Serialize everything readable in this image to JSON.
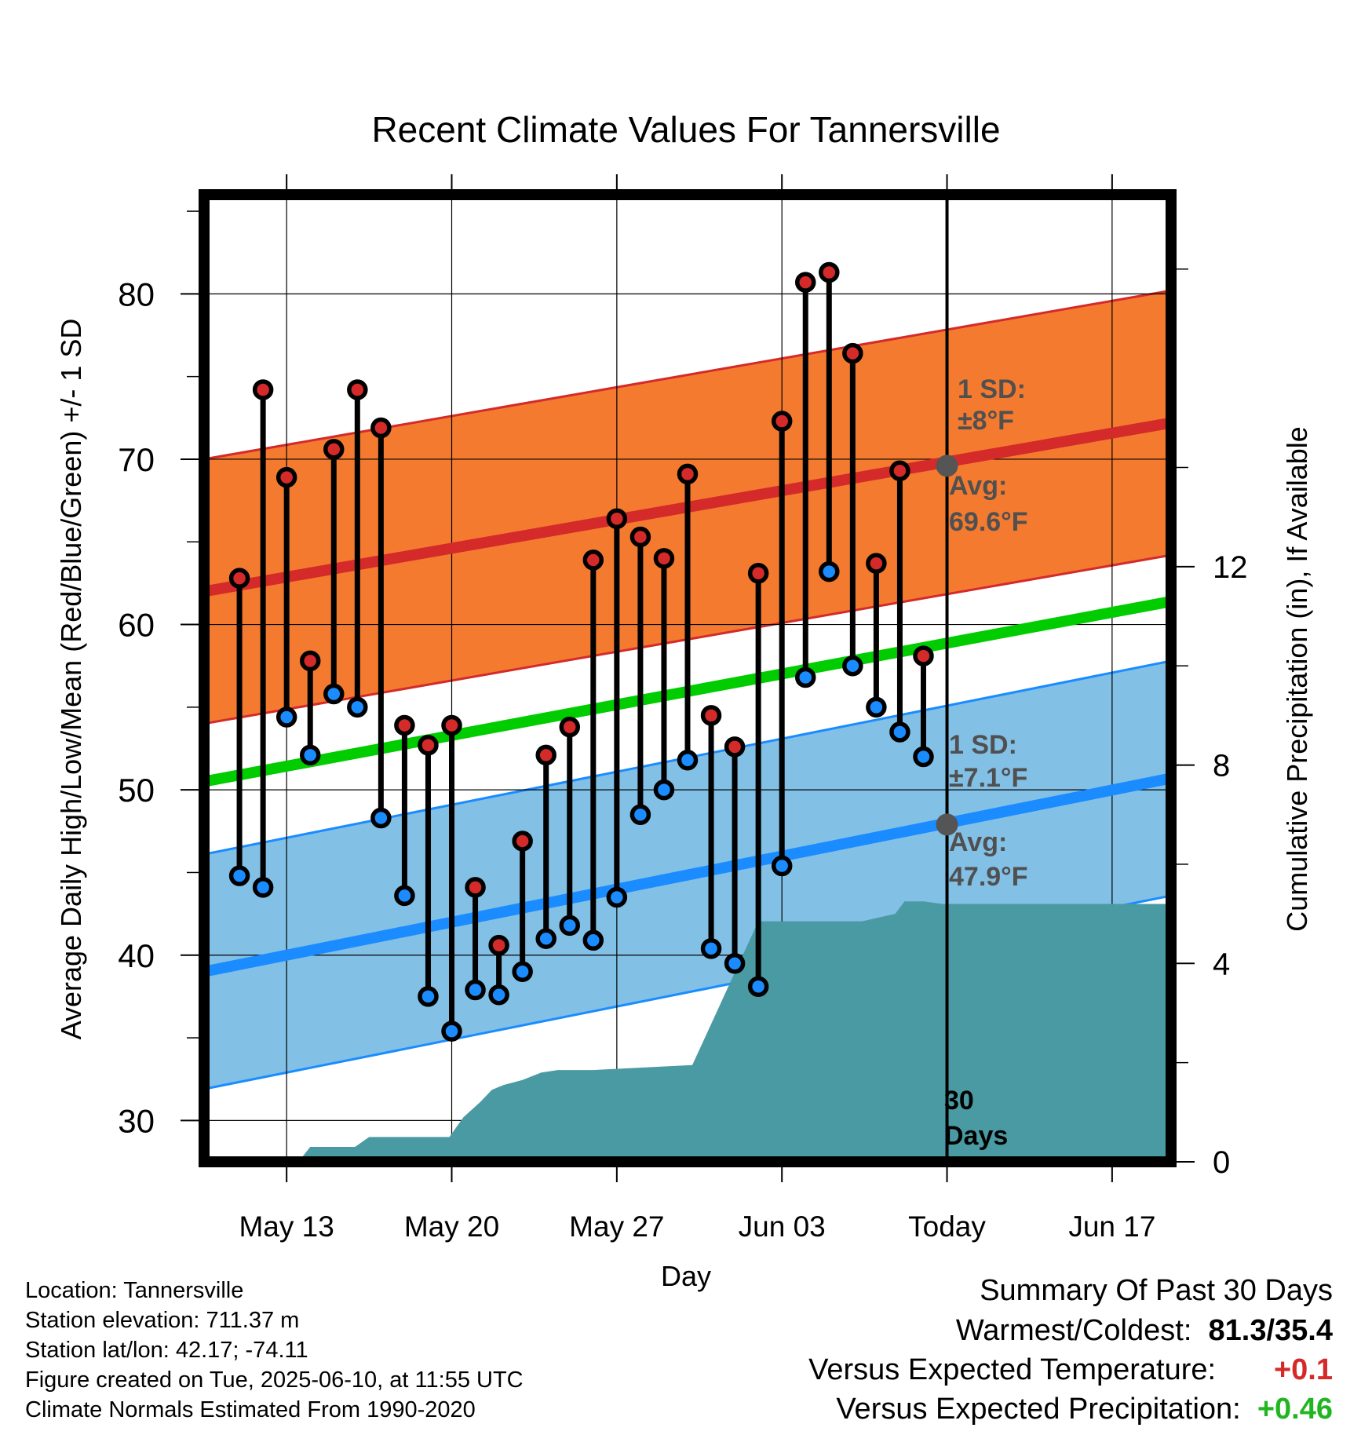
{
  "chart_data": {
    "type": "line",
    "title": "Recent Climate Values For Tannersville",
    "xlabel": "Day",
    "ylabel": "Average Daily High/Low/Mean (Red/Blue/Green) +/- 1 SD",
    "y2label": "Cumulative Precipitation (in), If Available",
    "xlim": [
      -3.5,
      37.5
    ],
    "ylim": [
      27.5,
      86
    ],
    "y2lim": [
      0,
      19.5
    ],
    "x_tick_labels": [
      {
        "x": 0,
        "label": "May 13"
      },
      {
        "x": 7,
        "label": "May 20"
      },
      {
        "x": 14,
        "label": "May 27"
      },
      {
        "x": 21,
        "label": "Jun 03"
      },
      {
        "x": 28,
        "label": "Today"
      },
      {
        "x": 35,
        "label": "Jun 17"
      }
    ],
    "y_ticks": [
      30,
      40,
      50,
      60,
      70,
      80
    ],
    "y2_ticks": [
      0,
      4,
      8,
      12
    ],
    "grid": true,
    "today_x": 28,
    "today_label": "30 Days",
    "normal_high": {
      "start": 62.0,
      "end": 72.2,
      "sd": 8,
      "sd_label": "1 SD:",
      "sd_value": "±8°F",
      "avg_label": "Avg:",
      "avg_value": "69.6°F",
      "avg_at_today": 69.6
    },
    "normal_low": {
      "start": 39.0,
      "end": 50.7,
      "sd": 7.1,
      "sd_label": "1 SD:",
      "sd_value": "±7.1°F",
      "avg_label": "Avg:",
      "avg_value": "47.9°F",
      "avg_at_today": 47.9
    },
    "normal_mean": {
      "start": 50.5,
      "end": 61.4
    },
    "days": [
      -2,
      -1,
      0,
      1,
      2,
      3,
      4,
      5,
      6,
      7,
      8,
      9,
      10,
      11,
      12,
      13,
      14,
      15,
      16,
      17,
      18,
      19,
      20,
      21,
      22,
      23,
      24,
      25,
      26,
      27
    ],
    "series": [
      {
        "name": "High",
        "values": [
          62.8,
          74.2,
          68.9,
          57.8,
          70.6,
          74.2,
          71.9,
          53.9,
          52.7,
          53.9,
          44.1,
          40.6,
          46.9,
          52.1,
          53.8,
          63.9,
          66.4,
          65.3,
          64.0,
          69.1,
          54.5,
          52.6,
          63.1,
          72.3,
          80.7,
          81.3,
          76.4,
          63.7,
          69.3,
          58.1
        ]
      },
      {
        "name": "Low",
        "values": [
          44.8,
          44.1,
          54.4,
          52.1,
          55.8,
          55.0,
          48.3,
          43.6,
          37.5,
          35.4,
          37.9,
          37.6,
          39.0,
          41.0,
          41.8,
          40.9,
          43.5,
          48.5,
          50.0,
          51.8,
          40.4,
          39.5,
          38.1,
          45.4,
          56.8,
          63.2,
          57.5,
          55.0,
          53.5,
          52.0
        ]
      }
    ],
    "precip": {
      "x": [
        -3.5,
        0.5,
        1,
        2.9,
        3.5,
        6.9,
        7.5,
        8.2,
        8.7,
        9.2,
        10,
        10.8,
        11.5,
        13,
        17.2,
        20,
        22,
        24.2,
        24.4,
        25.8,
        26.2,
        27,
        27.8,
        37.5
      ],
      "values": [
        0,
        0,
        0.3,
        0.3,
        0.5,
        0.5,
        0.9,
        1.2,
        1.45,
        1.55,
        1.65,
        1.8,
        1.85,
        1.85,
        1.95,
        4.85,
        4.85,
        4.85,
        4.85,
        5.0,
        5.25,
        5.25,
        5.2,
        5.2
      ]
    }
  },
  "info": {
    "location": "Location: Tannersville",
    "elevation": "Station elevation: 711.37 m",
    "latlon": "Station lat/lon: 42.17; -74.11",
    "created": "Figure created on Tue, 2025-06-10, at 11:55 UTC",
    "normals": "Climate Normals Estimated From 1990-2020"
  },
  "summary": {
    "title": "Summary Of Past 30 Days",
    "warm_label": "Warmest/Coldest:",
    "warm_value": "81.3/35.4",
    "temp_label": "Versus Expected Temperature:",
    "temp_value": "+0.1",
    "precip_label": "Versus Expected Precipitation:",
    "precip_value": "+0.46"
  },
  "colors": {
    "high_band": "#f47a30",
    "high_line": "#d42a2a",
    "low_band": "#82c0e6",
    "low_line": "#1a8cff",
    "mean_line": "#00cc00",
    "precip": "#4a9aa4",
    "high_dot": "#d42a2a",
    "low_dot": "#1a8cff",
    "avg_dot": "#555555",
    "label_gray": "#505050",
    "temp_value": "#d42a2a",
    "precip_value": "#22b522"
  }
}
